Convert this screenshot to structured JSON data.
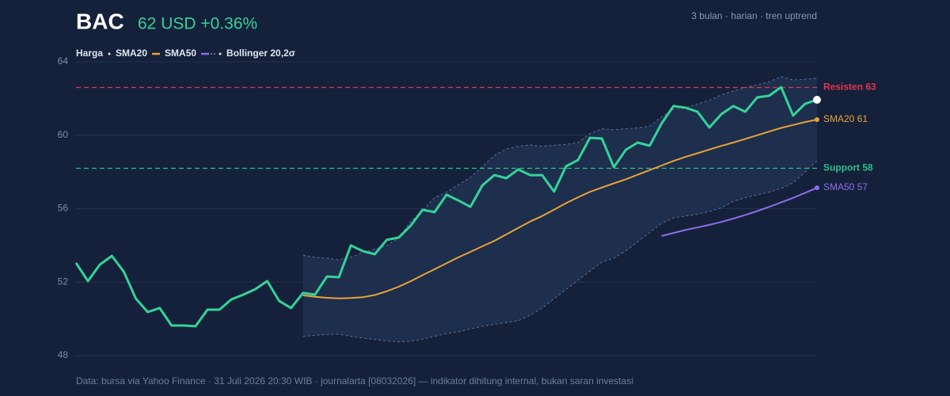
{
  "chart_data": {
    "type": "line",
    "title": "BAC",
    "subtitle": "62 USD +0.36%",
    "note": "3 bulan · harian · tren uptrend",
    "source": "Data: bursa via Yahoo Finance · 31 Juli 2026 20:30 WIB · journalarta [08032026] — indikator dihitung internal, bukan saran investasi",
    "ylim": [
      48,
      64
    ],
    "yticks": [
      48,
      52,
      56,
      60,
      64
    ],
    "grid": true,
    "series": [
      {
        "name": "Harga",
        "color": "#34d399",
        "values": [
          53.05,
          52.06,
          52.96,
          53.43,
          52.57,
          51.11,
          50.37,
          50.59,
          49.64,
          49.64,
          49.6,
          50.5,
          50.5,
          51.06,
          51.32,
          51.62,
          52.06,
          50.98,
          50.59,
          51.41,
          51.32,
          52.31,
          52.27,
          54.0,
          53.69,
          53.52,
          54.3,
          54.43,
          55.07,
          55.94,
          55.81,
          56.76,
          56.45,
          56.1,
          57.27,
          57.83,
          57.66,
          58.14,
          57.83,
          57.83,
          56.93,
          58.31,
          58.65,
          59.86,
          59.82,
          58.26,
          59.21,
          59.6,
          59.43,
          60.64,
          61.59,
          61.5,
          61.28,
          60.42,
          61.15,
          61.59,
          61.28,
          62.06,
          62.15,
          62.62,
          61.07,
          61.71,
          61.93
        ]
      },
      {
        "name": "SMA20",
        "color": "#e8a33a",
        "end_label": "SMA20 61",
        "values": [
          null,
          null,
          null,
          null,
          null,
          null,
          null,
          null,
          null,
          null,
          null,
          null,
          null,
          null,
          null,
          null,
          null,
          null,
          null,
          51.28,
          51.2,
          51.15,
          51.12,
          51.14,
          51.18,
          51.3,
          51.5,
          51.75,
          52.05,
          52.38,
          52.7,
          53.03,
          53.35,
          53.65,
          53.95,
          54.25,
          54.6,
          54.95,
          55.3,
          55.6,
          55.95,
          56.3,
          56.62,
          56.92,
          57.15,
          57.38,
          57.6,
          57.85,
          58.1,
          58.35,
          58.6,
          58.82,
          59.02,
          59.22,
          59.42,
          59.6,
          59.8,
          60.0,
          60.2,
          60.4,
          60.56,
          60.72,
          60.85
        ]
      },
      {
        "name": "SMA50",
        "color": "#8b6ee8",
        "end_label": "SMA50 57",
        "values": [
          null,
          null,
          null,
          null,
          null,
          null,
          null,
          null,
          null,
          null,
          null,
          null,
          null,
          null,
          null,
          null,
          null,
          null,
          null,
          null,
          null,
          null,
          null,
          null,
          null,
          null,
          null,
          null,
          null,
          null,
          null,
          null,
          null,
          null,
          null,
          null,
          null,
          null,
          null,
          null,
          null,
          null,
          null,
          null,
          null,
          null,
          null,
          null,
          null,
          54.51,
          54.68,
          54.84,
          54.98,
          55.12,
          55.28,
          55.46,
          55.66,
          55.87,
          56.1,
          56.34,
          56.59,
          56.86,
          57.14
        ]
      }
    ],
    "band": {
      "name": "Bollinger 20,2σ",
      "color": "#5d6f93",
      "upper": [
        null,
        null,
        null,
        null,
        null,
        null,
        null,
        null,
        null,
        null,
        null,
        null,
        null,
        null,
        null,
        null,
        null,
        null,
        null,
        53.48,
        53.35,
        53.3,
        53.22,
        53.35,
        53.6,
        53.8,
        54.0,
        54.4,
        55.3,
        55.9,
        56.6,
        56.9,
        57.3,
        57.7,
        58.3,
        58.9,
        59.25,
        59.4,
        59.47,
        59.4,
        59.45,
        59.5,
        59.6,
        60.1,
        60.35,
        60.3,
        60.35,
        60.4,
        60.5,
        61.0,
        61.4,
        61.5,
        61.7,
        61.9,
        62.2,
        62.4,
        62.6,
        62.75,
        62.9,
        63.2,
        63.0,
        63.05,
        63.1
      ],
      "lower": [
        null,
        null,
        null,
        null,
        null,
        null,
        null,
        null,
        null,
        null,
        null,
        null,
        null,
        null,
        null,
        null,
        null,
        null,
        null,
        49.04,
        49.1,
        49.15,
        49.17,
        49.05,
        48.95,
        48.88,
        48.8,
        48.75,
        48.78,
        48.9,
        49.05,
        49.2,
        49.3,
        49.45,
        49.6,
        49.7,
        49.8,
        49.9,
        50.2,
        50.6,
        51.1,
        51.6,
        52.1,
        52.6,
        53.1,
        53.3,
        53.7,
        54.2,
        54.7,
        55.2,
        55.5,
        55.6,
        55.7,
        55.85,
        56.05,
        56.4,
        56.6,
        56.75,
        56.9,
        57.1,
        57.4,
        58.0,
        58.6
      ]
    },
    "levels": [
      {
        "label": "Resisten 63",
        "value": 62.6,
        "color": "#e0344f"
      },
      {
        "label": "Support 58",
        "value": 58.2,
        "color": "#2bbf8a"
      }
    ]
  }
}
